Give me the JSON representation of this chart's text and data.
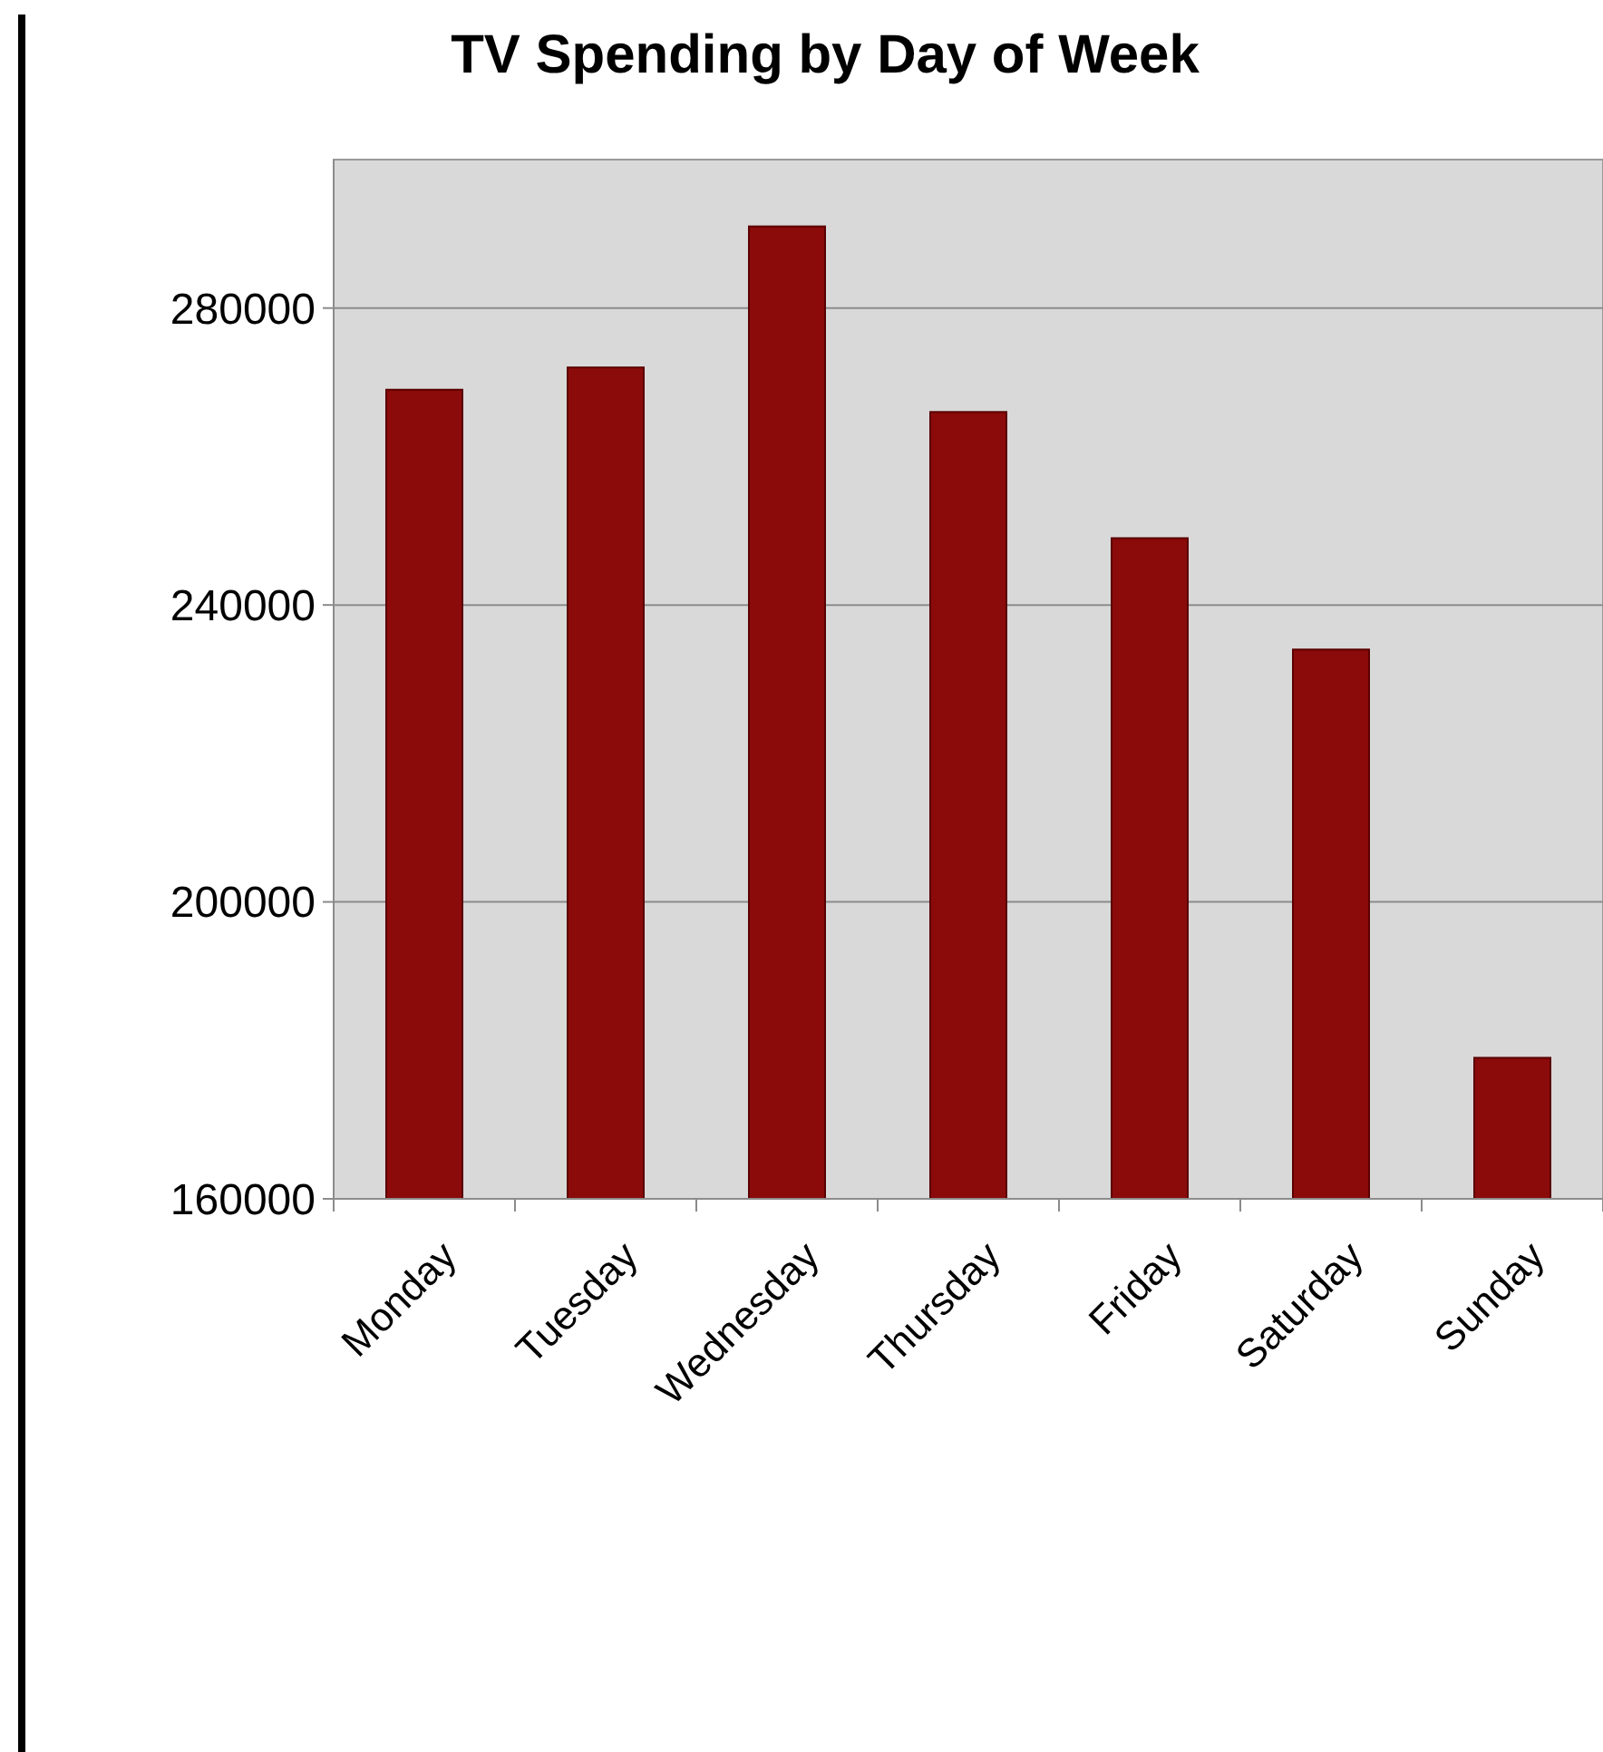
{
  "chart_data": {
    "type": "bar",
    "title": "TV Spending by Day of Week",
    "categories": [
      "Monday",
      "Tuesday",
      "Wednesday",
      "Thursday",
      "Friday",
      "Saturday",
      "Sunday"
    ],
    "values": [
      269000,
      272000,
      291000,
      266000,
      249000,
      234000,
      179000
    ],
    "color": "#8b0a0a",
    "ylim": [
      160000,
      300000
    ],
    "yticks": [
      160000,
      200000,
      240000,
      280000
    ],
    "grid": "y"
  }
}
